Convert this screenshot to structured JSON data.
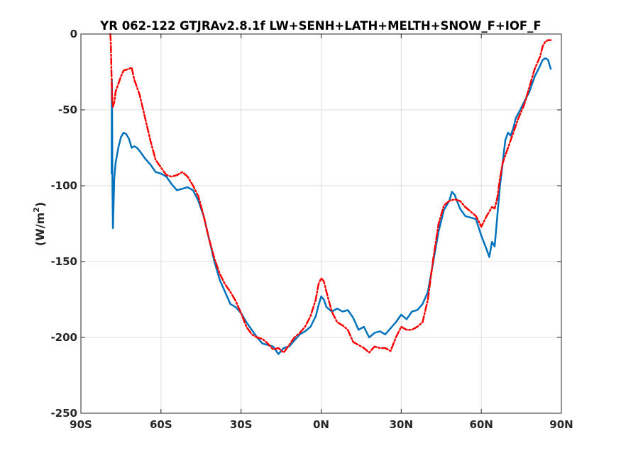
{
  "chart_data": {
    "type": "line",
    "title": "YR 062-122 GTJRAv2.8.1f LW+SENH+LATH+MELTH+SNOW_F+IOF_F",
    "xlabel": "",
    "ylabel": "(W/m²)",
    "ylabel_base": "(W/m",
    "ylabel_sup": "2",
    "ylabel_end": ")",
    "xlim": [
      -90,
      90
    ],
    "ylim": [
      -250,
      0
    ],
    "x_ticks": [
      {
        "value": -90,
        "label": "90S"
      },
      {
        "value": -60,
        "label": "60S"
      },
      {
        "value": -30,
        "label": "30S"
      },
      {
        "value": 0,
        "label": "0N"
      },
      {
        "value": 30,
        "label": "30N"
      },
      {
        "value": 60,
        "label": "60N"
      },
      {
        "value": 90,
        "label": "90N"
      }
    ],
    "y_ticks": [
      {
        "value": 0,
        "label": "0"
      },
      {
        "value": -50,
        "label": "-50"
      },
      {
        "value": -100,
        "label": "-100"
      },
      {
        "value": -150,
        "label": "-150"
      },
      {
        "value": -200,
        "label": "-200"
      },
      {
        "value": -250,
        "label": "-250"
      }
    ],
    "grid": true,
    "series": [
      {
        "color": "#0072bd",
        "style": "solid",
        "points": [
          [
            -78.5,
            -92
          ],
          [
            -78.4,
            -30
          ],
          [
            -78.3,
            -55
          ],
          [
            -78.2,
            -100
          ],
          [
            -78,
            -128
          ],
          [
            -77.5,
            -95
          ],
          [
            -77,
            -85
          ],
          [
            -76,
            -75
          ],
          [
            -75,
            -68
          ],
          [
            -74,
            -65
          ],
          [
            -73,
            -66
          ],
          [
            -72,
            -69
          ],
          [
            -71,
            -75
          ],
          [
            -70,
            -74
          ],
          [
            -69,
            -75
          ],
          [
            -68,
            -77
          ],
          [
            -66,
            -82
          ],
          [
            -64,
            -86
          ],
          [
            -62,
            -91
          ],
          [
            -60,
            -92
          ],
          [
            -58,
            -94
          ],
          [
            -56,
            -99
          ],
          [
            -54,
            -103
          ],
          [
            -52,
            -102
          ],
          [
            -50,
            -101
          ],
          [
            -48,
            -103
          ],
          [
            -46,
            -110
          ],
          [
            -44,
            -120
          ],
          [
            -42,
            -135
          ],
          [
            -40,
            -150
          ],
          [
            -38,
            -162
          ],
          [
            -36,
            -170
          ],
          [
            -34,
            -178
          ],
          [
            -32,
            -180
          ],
          [
            -30,
            -184
          ],
          [
            -28,
            -190
          ],
          [
            -26,
            -195
          ],
          [
            -24,
            -200
          ],
          [
            -22,
            -204
          ],
          [
            -20,
            -205
          ],
          [
            -18,
            -206
          ],
          [
            -16,
            -211
          ],
          [
            -14,
            -207
          ],
          [
            -12,
            -206
          ],
          [
            -10,
            -202
          ],
          [
            -8,
            -198
          ],
          [
            -6,
            -196
          ],
          [
            -4,
            -193
          ],
          [
            -2,
            -186
          ],
          [
            -1,
            -179
          ],
          [
            0,
            -173
          ],
          [
            1,
            -175
          ],
          [
            2,
            -180
          ],
          [
            4,
            -183
          ],
          [
            6,
            -181
          ],
          [
            8,
            -183
          ],
          [
            10,
            -182
          ],
          [
            12,
            -187
          ],
          [
            14,
            -195
          ],
          [
            16,
            -193
          ],
          [
            18,
            -200
          ],
          [
            20,
            -197
          ],
          [
            22,
            -196
          ],
          [
            24,
            -198
          ],
          [
            26,
            -194
          ],
          [
            28,
            -190
          ],
          [
            30,
            -185
          ],
          [
            32,
            -188
          ],
          [
            34,
            -183
          ],
          [
            36,
            -182
          ],
          [
            38,
            -178
          ],
          [
            40,
            -170
          ],
          [
            42,
            -150
          ],
          [
            44,
            -130
          ],
          [
            46,
            -116
          ],
          [
            48,
            -110
          ],
          [
            49,
            -104
          ],
          [
            50,
            -106
          ],
          [
            52,
            -115
          ],
          [
            54,
            -120
          ],
          [
            56,
            -121
          ],
          [
            58,
            -122
          ],
          [
            60,
            -133
          ],
          [
            62,
            -142
          ],
          [
            63,
            -147
          ],
          [
            64,
            -137
          ],
          [
            65,
            -140
          ],
          [
            66,
            -120
          ],
          [
            67,
            -100
          ],
          [
            68,
            -85
          ],
          [
            69,
            -70
          ],
          [
            70,
            -65
          ],
          [
            71,
            -67
          ],
          [
            72,
            -62
          ],
          [
            73,
            -55
          ],
          [
            74,
            -52
          ],
          [
            76,
            -45
          ],
          [
            78,
            -38
          ],
          [
            80,
            -28
          ],
          [
            82,
            -21
          ],
          [
            83,
            -17
          ],
          [
            84,
            -16
          ],
          [
            85,
            -17
          ],
          [
            86,
            -23
          ]
        ]
      },
      {
        "color": "#ff0000",
        "style": "dashdot",
        "points": [
          [
            -79,
            0
          ],
          [
            -78.8,
            -5
          ],
          [
            -78.5,
            -30
          ],
          [
            -78.3,
            -42
          ],
          [
            -78,
            -48
          ],
          [
            -77.5,
            -45
          ],
          [
            -77,
            -38
          ],
          [
            -76,
            -33
          ],
          [
            -75,
            -28
          ],
          [
            -74,
            -24
          ],
          [
            -72,
            -23
          ],
          [
            -71,
            -22
          ],
          [
            -70,
            -30
          ],
          [
            -68,
            -40
          ],
          [
            -66,
            -55
          ],
          [
            -64,
            -70
          ],
          [
            -62,
            -83
          ],
          [
            -60,
            -88
          ],
          [
            -58,
            -93
          ],
          [
            -56,
            -94
          ],
          [
            -54,
            -93
          ],
          [
            -52,
            -91
          ],
          [
            -50,
            -94
          ],
          [
            -48,
            -100
          ],
          [
            -46,
            -107
          ],
          [
            -44,
            -120
          ],
          [
            -42,
            -135
          ],
          [
            -40,
            -148
          ],
          [
            -38,
            -158
          ],
          [
            -36,
            -165
          ],
          [
            -34,
            -170
          ],
          [
            -32,
            -176
          ],
          [
            -30,
            -184
          ],
          [
            -28,
            -193
          ],
          [
            -26,
            -198
          ],
          [
            -24,
            -200
          ],
          [
            -22,
            -201
          ],
          [
            -20,
            -204
          ],
          [
            -18,
            -208
          ],
          [
            -16,
            -207
          ],
          [
            -14,
            -210
          ],
          [
            -12,
            -205
          ],
          [
            -10,
            -200
          ],
          [
            -8,
            -197
          ],
          [
            -6,
            -193
          ],
          [
            -4,
            -186
          ],
          [
            -2,
            -175
          ],
          [
            -1,
            -165
          ],
          [
            0,
            -161
          ],
          [
            1,
            -163
          ],
          [
            2,
            -170
          ],
          [
            4,
            -183
          ],
          [
            6,
            -190
          ],
          [
            8,
            -192
          ],
          [
            10,
            -195
          ],
          [
            12,
            -203
          ],
          [
            14,
            -205
          ],
          [
            16,
            -207
          ],
          [
            18,
            -210
          ],
          [
            20,
            -206
          ],
          [
            22,
            -207
          ],
          [
            24,
            -207
          ],
          [
            26,
            -209
          ],
          [
            28,
            -200
          ],
          [
            30,
            -193
          ],
          [
            32,
            -195
          ],
          [
            34,
            -195
          ],
          [
            36,
            -193
          ],
          [
            38,
            -190
          ],
          [
            40,
            -175
          ],
          [
            42,
            -148
          ],
          [
            44,
            -125
          ],
          [
            46,
            -113
          ],
          [
            48,
            -110
          ],
          [
            50,
            -109
          ],
          [
            52,
            -110
          ],
          [
            54,
            -114
          ],
          [
            56,
            -117
          ],
          [
            58,
            -120
          ],
          [
            60,
            -127
          ],
          [
            62,
            -120
          ],
          [
            64,
            -114
          ],
          [
            65,
            -115
          ],
          [
            66,
            -108
          ],
          [
            67,
            -95
          ],
          [
            68,
            -85
          ],
          [
            70,
            -75
          ],
          [
            72,
            -65
          ],
          [
            74,
            -55
          ],
          [
            76,
            -47
          ],
          [
            78,
            -35
          ],
          [
            80,
            -23
          ],
          [
            82,
            -15
          ],
          [
            83,
            -8
          ],
          [
            84,
            -5
          ],
          [
            85,
            -4
          ],
          [
            86,
            -4
          ]
        ]
      }
    ]
  }
}
